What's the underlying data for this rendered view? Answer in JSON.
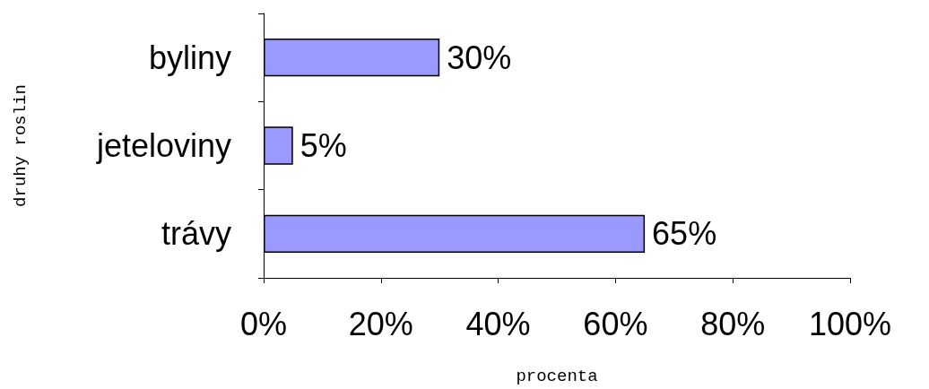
{
  "chart_data": {
    "type": "bar",
    "orientation": "horizontal",
    "xlabel": "procenta",
    "ylabel": "druhy roslin",
    "categories": [
      "byliny",
      "jeteloviny",
      "trávy"
    ],
    "values": [
      30,
      5,
      65
    ],
    "value_labels": [
      "30%",
      "5%",
      "65%"
    ],
    "color": "#9999ff",
    "xlim": [
      0,
      100
    ],
    "xticks": [
      {
        "value": 0,
        "label": "0%"
      },
      {
        "value": 20,
        "label": "20%"
      },
      {
        "value": 40,
        "label": "40%"
      },
      {
        "value": 60,
        "label": "60%"
      },
      {
        "value": 80,
        "label": "80%"
      },
      {
        "value": 100,
        "label": "100%"
      }
    ],
    "grid": false
  }
}
